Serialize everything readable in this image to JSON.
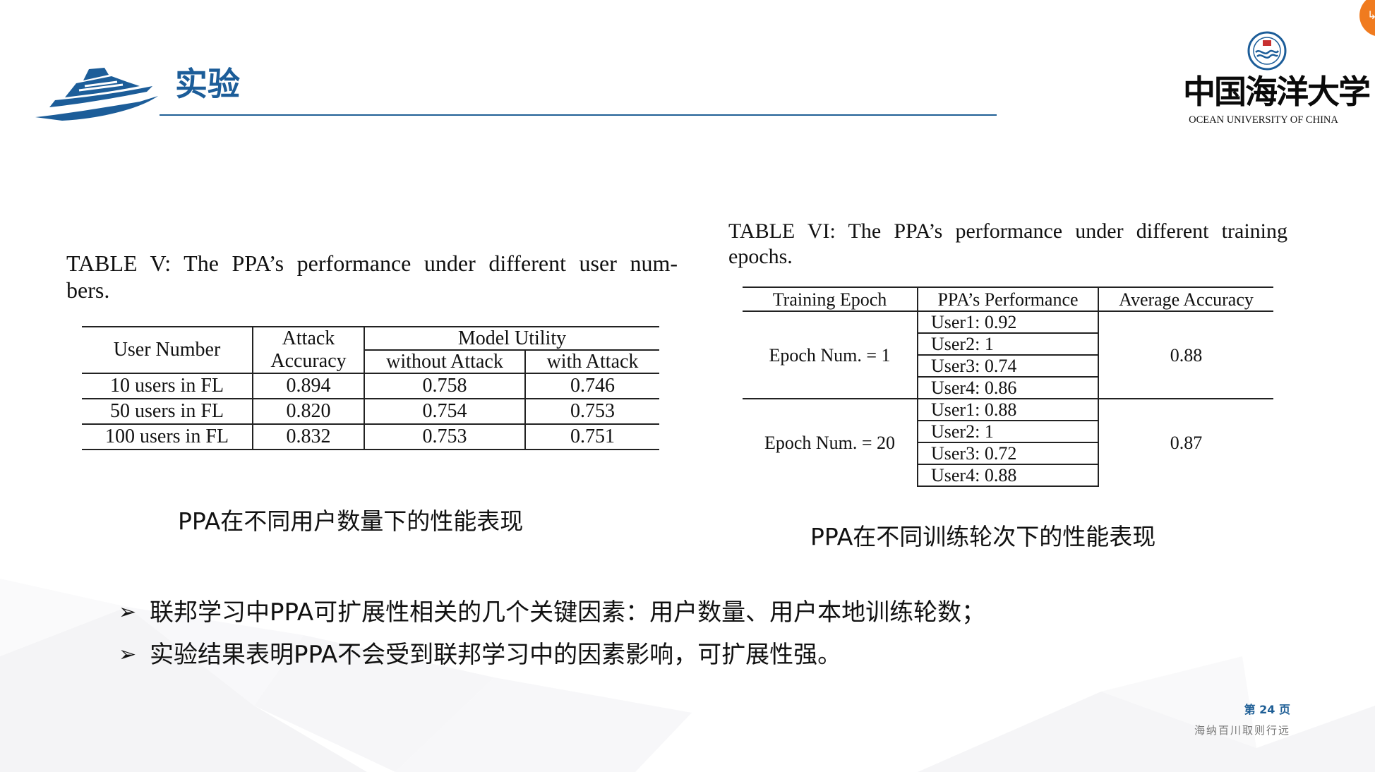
{
  "header": {
    "title": "实验",
    "university_cn": "中国海洋大学",
    "university_en": "OCEAN UNIVERSITY OF CHINA",
    "accent_color": "#1c5d99"
  },
  "table5": {
    "caption_line1": "TABLE V: The PPA’s performance under different user num-",
    "caption_line2": "bers.",
    "head": {
      "user_number": "User Number",
      "attack_1": "Attack",
      "attack_2": "Accuracy",
      "model_utility": "Model Utility",
      "without_attack": "without Attack",
      "with_attack": "with Attack"
    },
    "rows": [
      {
        "users": "10 users in FL",
        "attack": "0.894",
        "without": "0.758",
        "with": "0.746"
      },
      {
        "users": "50 users in FL",
        "attack": "0.820",
        "without": "0.754",
        "with": "0.753"
      },
      {
        "users": "100 users in FL",
        "attack": "0.832",
        "without": "0.753",
        "with": "0.751"
      }
    ],
    "zh_caption": "PPA在不同用户数量下的性能表现"
  },
  "table6": {
    "caption_line1": "TABLE VI: The PPA’s performance under different training",
    "caption_line2": "epochs.",
    "head": {
      "epoch": "Training Epoch",
      "perf": "PPA’s Performance",
      "avg": "Average Accuracy"
    },
    "groups": [
      {
        "epoch": "Epoch Num. = 1",
        "avg": "0.88",
        "users": [
          "User1: 0.92",
          "User2: 1",
          "User3: 0.74",
          "User4: 0.86"
        ]
      },
      {
        "epoch": "Epoch Num. = 20",
        "avg": "0.87",
        "users": [
          "User1: 0.88",
          "User2: 1",
          "User3: 0.72",
          "User4: 0.88"
        ]
      }
    ],
    "zh_caption": "PPA在不同训练轮次下的性能表现"
  },
  "bullets": {
    "mark": "➢",
    "items": [
      "联邦学习中PPA可扩展性相关的几个关键因素：用户数量、用户本地训练轮数；",
      "实验结果表明PPA不会受到联邦学习中的因素影响，可扩展性强。"
    ]
  },
  "footer": {
    "page": "第 24 页",
    "motto": "海纳百川取则行远"
  }
}
